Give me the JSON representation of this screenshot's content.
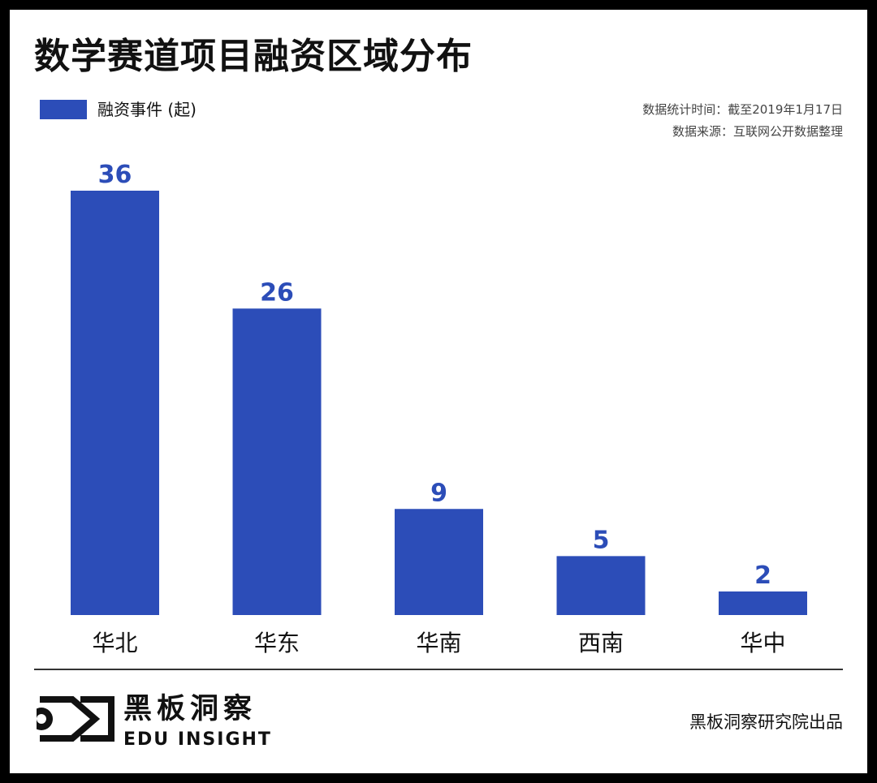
{
  "title": "数学赛道项目融资区域分布",
  "legend_label": "融资事件 (起)",
  "meta": {
    "date_note": "数据统计时间：截至2019年1月17日",
    "source_note": "数据来源：互联网公开数据整理"
  },
  "brand": {
    "name_cn": "黑板洞察",
    "name_en": "EDU INSIGHT",
    "publisher": "黑板洞察研究院出品",
    "logo_icon": "eye-frame-logo-icon"
  },
  "colors": {
    "bar": "#2C4DB8",
    "text": "#111111",
    "frame": "#000000"
  },
  "chart_data": {
    "type": "bar",
    "categories": [
      "华北",
      "华东",
      "华南",
      "西南",
      "华中"
    ],
    "series": [
      {
        "name": "融资事件 (起)",
        "values": [
          36,
          26,
          9,
          5,
          2
        ]
      }
    ],
    "ylim": [
      0,
      36
    ],
    "grid": false,
    "legend": "top-left",
    "data_labels": true
  }
}
